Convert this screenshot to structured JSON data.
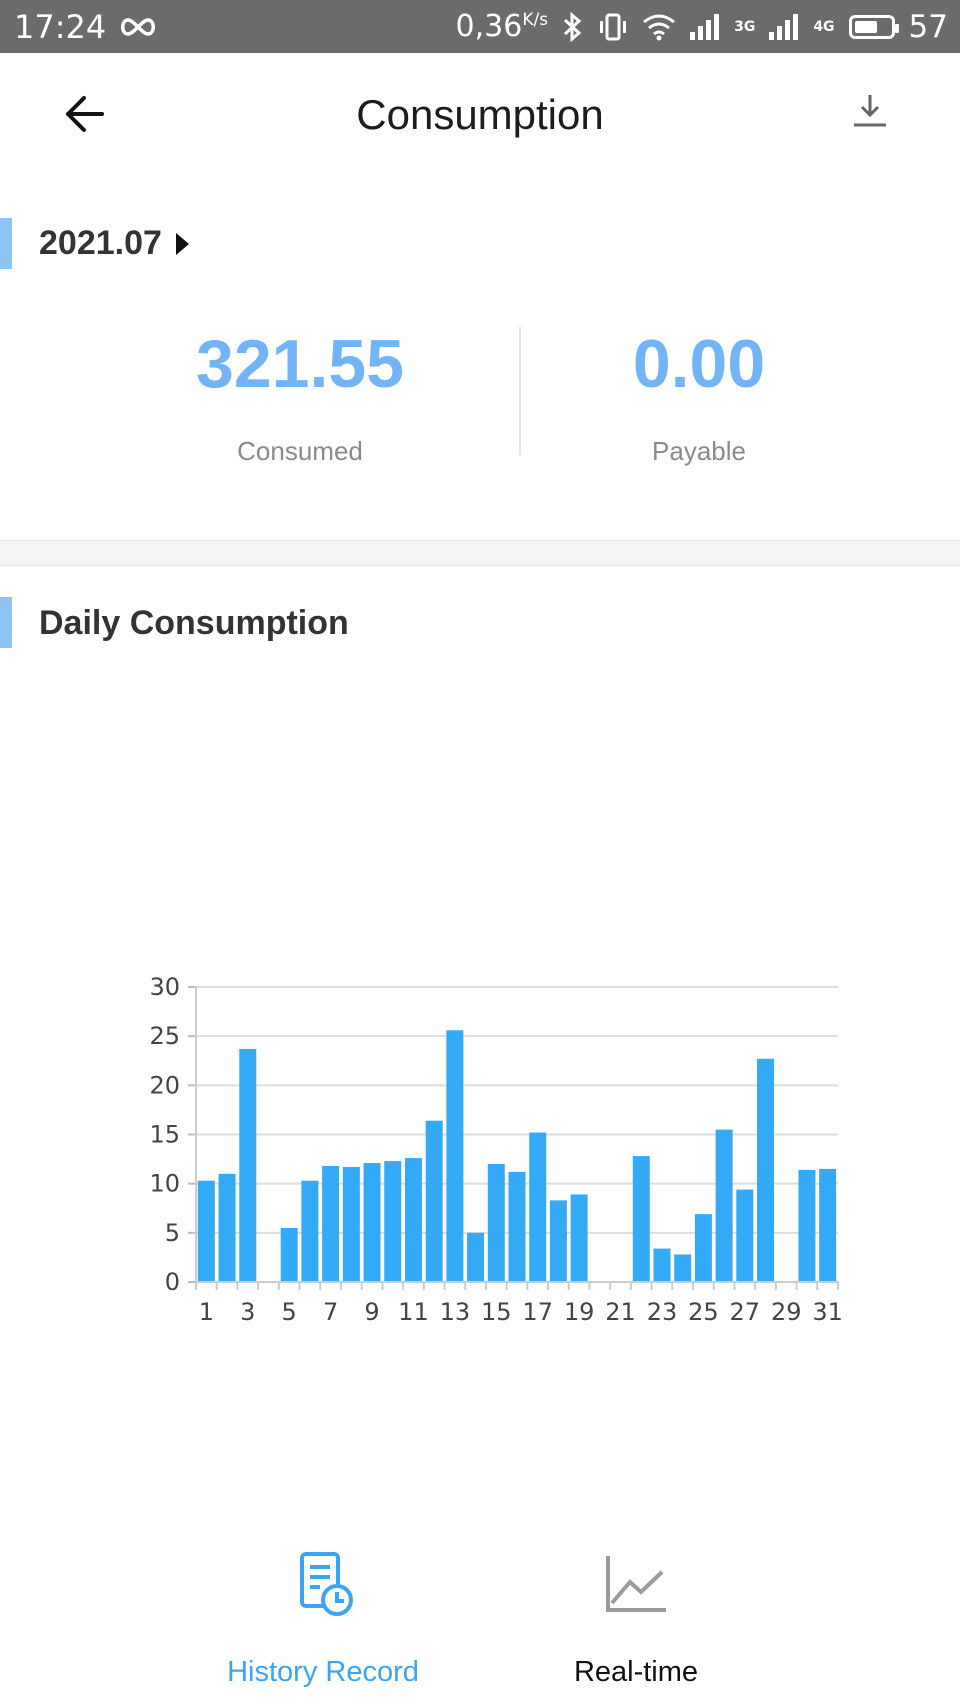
{
  "status_bar": {
    "time": "17:24",
    "speed": "0,36",
    "speed_unit": "K/s",
    "net1": "3G",
    "net2": "4G",
    "battery": "57"
  },
  "header": {
    "title": "Consumption",
    "back_icon": "arrow-left-icon",
    "download_icon": "download-icon"
  },
  "period": {
    "month": "2021.07"
  },
  "summary": {
    "consumed_value": "321.55",
    "consumed_label": "Consumed",
    "payable_value": "0.00",
    "payable_label": "Payable"
  },
  "section": {
    "title": "Daily Consumption"
  },
  "colors": {
    "accent": "#3aa5f4",
    "bar": "#34aaf7",
    "marker": "#8cc4f6",
    "value": "#72b4f6"
  },
  "chart_data": {
    "type": "bar",
    "title": "",
    "xlabel": "",
    "ylabel": "",
    "ylim": [
      0,
      30
    ],
    "yticks": [
      0,
      5,
      10,
      15,
      20,
      25,
      30
    ],
    "xtick_labels": [
      "1",
      "3",
      "5",
      "7",
      "9",
      "11",
      "13",
      "15",
      "17",
      "19",
      "21",
      "23",
      "25",
      "27",
      "29",
      "31"
    ],
    "categories": [
      1,
      2,
      3,
      4,
      5,
      6,
      7,
      8,
      9,
      10,
      11,
      12,
      13,
      14,
      15,
      16,
      17,
      18,
      19,
      20,
      21,
      22,
      23,
      24,
      25,
      26,
      27,
      28,
      29,
      30,
      31
    ],
    "values": [
      10.3,
      11.0,
      23.7,
      0,
      5.5,
      10.3,
      11.8,
      11.7,
      12.1,
      12.3,
      12.6,
      16.4,
      25.6,
      5.0,
      12.0,
      11.2,
      15.2,
      8.3,
      8.9,
      0,
      0,
      12.8,
      3.4,
      2.8,
      6.9,
      15.5,
      9.4,
      22.7,
      0,
      11.4,
      11.5
    ],
    "grid": true,
    "legend": "none"
  },
  "tabs": [
    {
      "label": "History Record",
      "icon": "history-record-icon",
      "active": true
    },
    {
      "label": "Real-time",
      "icon": "line-chart-icon",
      "active": false
    }
  ]
}
